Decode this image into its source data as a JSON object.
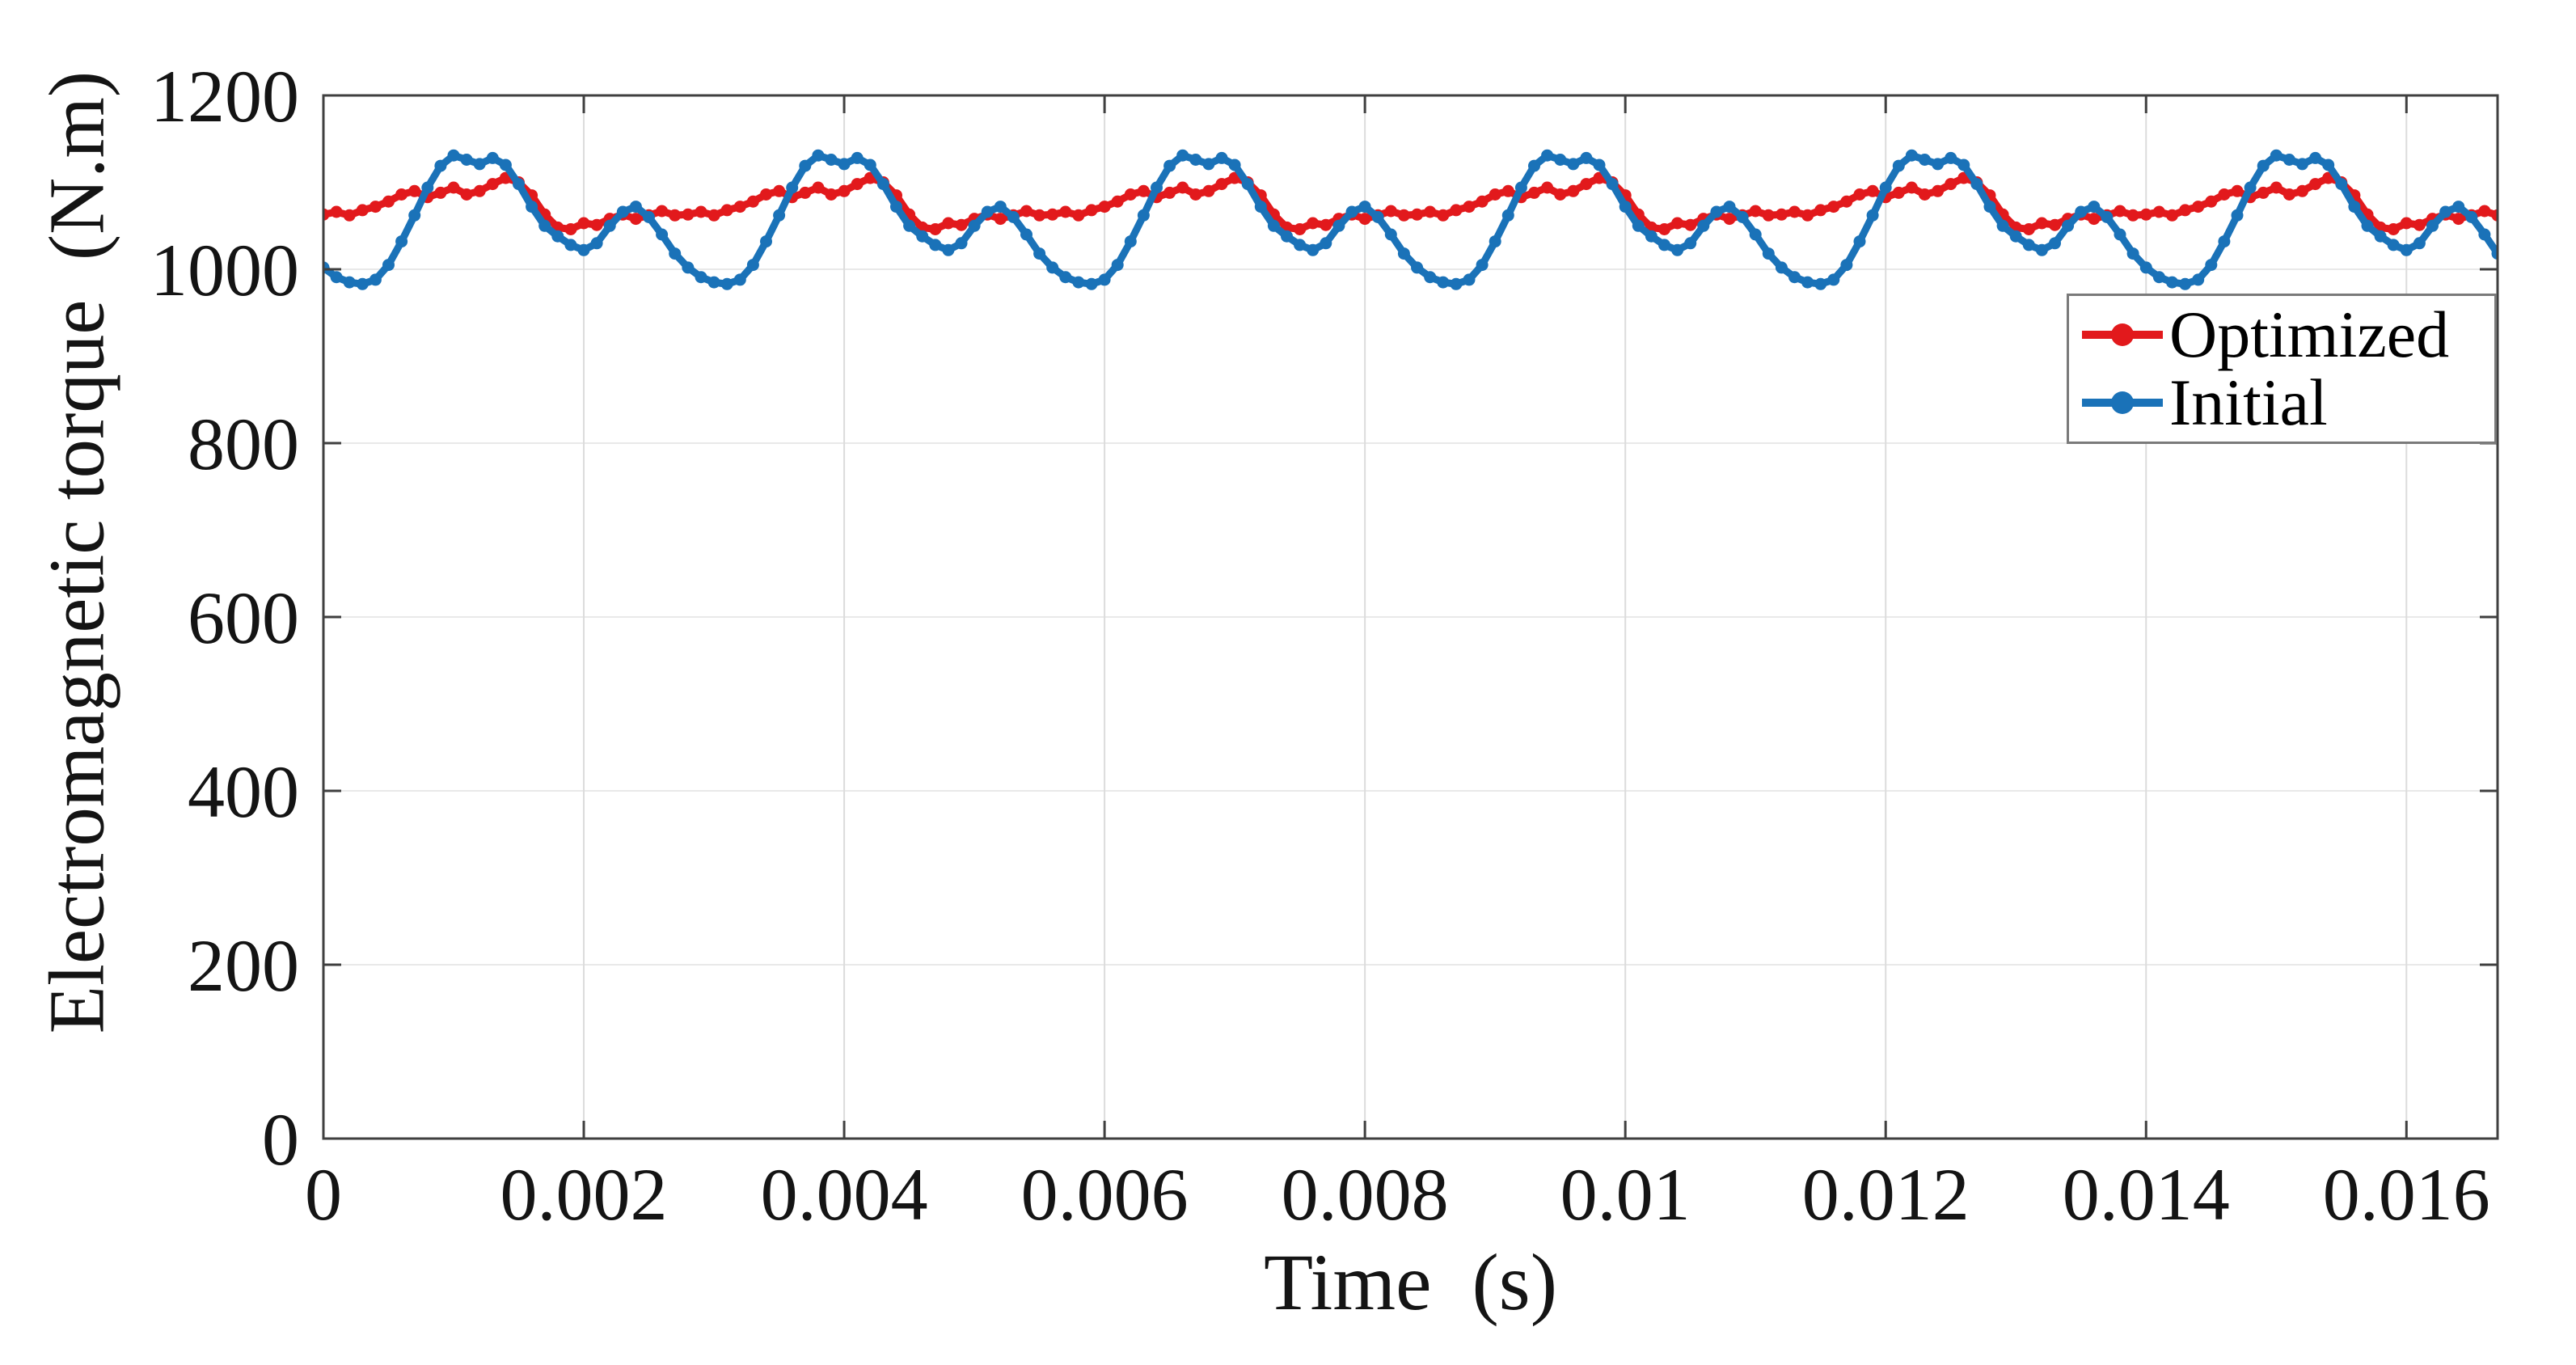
{
  "page": {
    "background": "#ffffff"
  },
  "chart_data": {
    "type": "line",
    "title": "",
    "xlabel": "Time  (s)",
    "ylabel": "Electromagnetic torque  (N.m)",
    "xlim": [
      0,
      0.0167
    ],
    "ylim": [
      0,
      1200
    ],
    "xticks": [
      0,
      0.002,
      0.004,
      0.006,
      0.008,
      0.01,
      0.012,
      0.014,
      0.016
    ],
    "xtick_labels": [
      "0",
      "0.002",
      "0.004",
      "0.006",
      "0.008",
      "0.01",
      "0.012",
      "0.014",
      "0.016"
    ],
    "yticks": [
      0,
      200,
      400,
      600,
      800,
      1000,
      1200
    ],
    "ytick_labels": [
      "0",
      "200",
      "400",
      "600",
      "800",
      "1000",
      "1200"
    ],
    "grid": true,
    "axis_color": "#3f3f3f",
    "grid_color_vertical": "#dcdcdc",
    "grid_color_horizontal": "#e9e9e9",
    "legend_position": "upper-right-inside",
    "sampling": {
      "t_start": 0,
      "t_step": 0.0001,
      "points": 168
    },
    "series": [
      {
        "name": "Optimized",
        "color": "#e2191c",
        "marker": "filled-circle",
        "values": [
          1063,
          1066,
          1062,
          1068,
          1072,
          1078,
          1086,
          1090,
          1083,
          1088,
          1094,
          1086,
          1090,
          1098,
          1105,
          1100,
          1085,
          1063,
          1048,
          1046,
          1053,
          1051,
          1058,
          1063,
          1058,
          1062,
          1067,
          1062,
          1063,
          1066,
          1062,
          1068,
          1072,
          1078,
          1086,
          1090,
          1083,
          1088,
          1094,
          1086,
          1090,
          1098,
          1105,
          1100,
          1085,
          1063,
          1048,
          1046,
          1053,
          1051,
          1058,
          1063,
          1058,
          1062,
          1067,
          1062,
          1063,
          1066,
          1062,
          1068,
          1072,
          1078,
          1086,
          1090,
          1083,
          1088,
          1094,
          1086,
          1090,
          1098,
          1105,
          1100,
          1085,
          1063,
          1048,
          1046,
          1053,
          1051,
          1058,
          1063,
          1058,
          1062,
          1067,
          1062,
          1063,
          1066,
          1062,
          1068,
          1072,
          1078,
          1086,
          1090,
          1083,
          1088,
          1094,
          1086,
          1090,
          1098,
          1105,
          1100,
          1085,
          1063,
          1048,
          1046,
          1053,
          1051,
          1058,
          1063,
          1058,
          1062,
          1067,
          1062,
          1063,
          1066,
          1062,
          1068,
          1072,
          1078,
          1086,
          1090,
          1083,
          1088,
          1094,
          1086,
          1090,
          1098,
          1105,
          1100,
          1085,
          1063,
          1048,
          1046,
          1053,
          1051,
          1058,
          1063,
          1058,
          1062,
          1067,
          1062,
          1063,
          1066,
          1062,
          1068,
          1072,
          1078,
          1086,
          1090,
          1083,
          1088,
          1094,
          1086,
          1090,
          1098,
          1105,
          1100,
          1085,
          1063,
          1048,
          1046,
          1053,
          1051,
          1058,
          1063,
          1058,
          1062,
          1067,
          1062
        ]
      },
      {
        "name": "Initial",
        "color": "#1a72b8",
        "marker": "filled-circle",
        "values": [
          1002,
          991,
          985,
          983,
          988,
          1005,
          1032,
          1062,
          1094,
          1119,
          1131,
          1126,
          1121,
          1128,
          1120,
          1098,
          1072,
          1050,
          1038,
          1028,
          1022,
          1030,
          1050,
          1066,
          1072,
          1060,
          1040,
          1018,
          1002,
          991,
          985,
          983,
          988,
          1005,
          1032,
          1062,
          1094,
          1119,
          1131,
          1126,
          1121,
          1128,
          1120,
          1098,
          1072,
          1050,
          1038,
          1028,
          1022,
          1030,
          1050,
          1066,
          1072,
          1060,
          1040,
          1018,
          1002,
          991,
          985,
          983,
          988,
          1005,
          1032,
          1062,
          1094,
          1119,
          1131,
          1126,
          1121,
          1128,
          1120,
          1098,
          1072,
          1050,
          1038,
          1028,
          1022,
          1030,
          1050,
          1066,
          1072,
          1060,
          1040,
          1018,
          1002,
          991,
          985,
          983,
          988,
          1005,
          1032,
          1062,
          1094,
          1119,
          1131,
          1126,
          1121,
          1128,
          1120,
          1098,
          1072,
          1050,
          1038,
          1028,
          1022,
          1030,
          1050,
          1066,
          1072,
          1060,
          1040,
          1018,
          1002,
          991,
          985,
          983,
          988,
          1005,
          1032,
          1062,
          1094,
          1119,
          1131,
          1126,
          1121,
          1128,
          1120,
          1098,
          1072,
          1050,
          1038,
          1028,
          1022,
          1030,
          1050,
          1066,
          1072,
          1060,
          1040,
          1018,
          1002,
          991,
          985,
          983,
          988,
          1005,
          1032,
          1062,
          1094,
          1119,
          1131,
          1126,
          1121,
          1128,
          1120,
          1098,
          1072,
          1050,
          1038,
          1028,
          1022,
          1030,
          1050,
          1066,
          1072,
          1060,
          1040,
          1018
        ]
      }
    ]
  },
  "legend": {
    "items": [
      {
        "label": "Optimized",
        "color": "#e2191c"
      },
      {
        "label": "Initial",
        "color": "#1a72b8"
      }
    ]
  }
}
